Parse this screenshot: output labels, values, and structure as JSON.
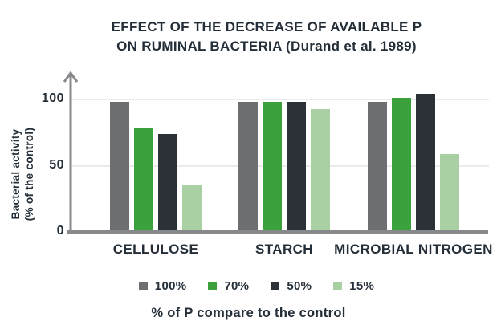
{
  "title": {
    "line1": "EFFECT OF THE DECREASE OF AVAILABLE P",
    "line2": "ON RUMINAL BACTERIA (Durand et al. 1989)"
  },
  "y_axis": {
    "title_line1": "Bacterial activity",
    "title_line2": "(% of the control)"
  },
  "caption": "% of P compare to the control",
  "colors": {
    "text": "#242e38",
    "axis": "#86888b",
    "gridline": "#ebebeb",
    "series_100": "#6d6e71",
    "series_70": "#3ba13d",
    "series_50": "#2b3137",
    "series_15": "#a9d0a3"
  },
  "chart_data": {
    "type": "bar",
    "title": "EFFECT OF THE DECREASE OF AVAILABLE P ON RUMINAL BACTERIA (Durand et al. 1989)",
    "categories": [
      "CELLULOSE",
      "STARCH",
      "MICROBIAL NITROGEN"
    ],
    "series": [
      {
        "name": "100%",
        "color": "#6d6e71",
        "values": [
          98,
          98,
          98
        ]
      },
      {
        "name": "70%",
        "color": "#3ba13d",
        "values": [
          79,
          98,
          101
        ]
      },
      {
        "name": "50%",
        "color": "#2b3137",
        "values": [
          74,
          98,
          104
        ]
      },
      {
        "name": "15%",
        "color": "#a9d0a3",
        "values": [
          35,
          93,
          59
        ]
      }
    ],
    "xlabel": "% of P compare to the control",
    "ylabel": "Bacterial activity (% of the control)",
    "yticks": [
      100,
      50,
      0
    ],
    "gridline_values": [
      100,
      50
    ],
    "ylim": [
      0,
      112
    ],
    "grid": true,
    "legend_position": "bottom"
  }
}
